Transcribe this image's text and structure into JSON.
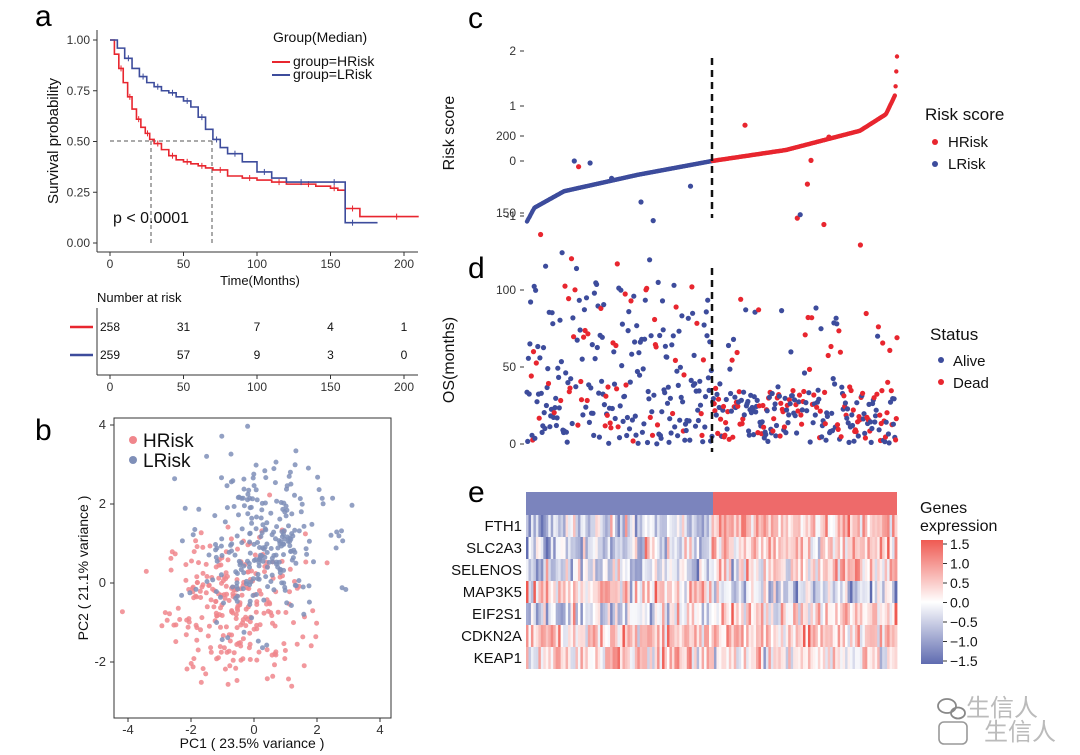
{
  "watermark": {
    "text": "生信人",
    "icon": "wechat-icon"
  },
  "colors": {
    "hrisk": "#e8262f",
    "lrisk": "#3d4c9c",
    "hrisk_pca": "#f0868c",
    "lrisk_pca": "#7f8fb8",
    "ref_line": "#555555"
  },
  "chart_data": [
    {
      "panel": "a",
      "type": "line",
      "title": "",
      "xlabel": "Time(Months)",
      "ylabel": "Survival probability",
      "xlim": [
        0,
        210
      ],
      "ylim": [
        0,
        1
      ],
      "xticks": [
        "0",
        "50",
        "100",
        "150",
        "200"
      ],
      "yticks": [
        "0.00",
        "0.25",
        "0.50",
        "0.75",
        "1.00"
      ],
      "legend_title": "Group(Median)",
      "pvalue": "p < 0.0001",
      "median_survival": [
        {
          "group": "HRisk",
          "x": 28,
          "y": 0.5
        },
        {
          "group": "LRisk",
          "x": 70,
          "y": 0.5
        }
      ],
      "series": [
        {
          "name": "group=HRisk",
          "color": "#e8262f",
          "x": [
            0,
            3,
            6,
            9,
            12,
            15,
            18,
            21,
            24,
            27,
            30,
            35,
            40,
            45,
            50,
            55,
            60,
            65,
            70,
            80,
            90,
            100,
            110,
            120,
            130,
            140,
            150,
            155,
            160,
            170,
            180,
            210
          ],
          "y": [
            1.0,
            0.93,
            0.86,
            0.79,
            0.72,
            0.66,
            0.61,
            0.57,
            0.54,
            0.51,
            0.49,
            0.46,
            0.43,
            0.41,
            0.4,
            0.39,
            0.38,
            0.37,
            0.36,
            0.33,
            0.32,
            0.31,
            0.3,
            0.29,
            0.29,
            0.28,
            0.27,
            0.26,
            0.17,
            0.13,
            0.13,
            0.13
          ]
        },
        {
          "name": "group=LRisk",
          "color": "#3d4c9c",
          "x": [
            0,
            5,
            10,
            15,
            20,
            25,
            30,
            35,
            40,
            45,
            50,
            55,
            60,
            65,
            70,
            75,
            80,
            90,
            100,
            110,
            120,
            140,
            150,
            155,
            160,
            170,
            182
          ],
          "y": [
            1.0,
            0.96,
            0.91,
            0.86,
            0.82,
            0.79,
            0.77,
            0.75,
            0.74,
            0.72,
            0.7,
            0.67,
            0.62,
            0.56,
            0.51,
            0.47,
            0.44,
            0.4,
            0.35,
            0.32,
            0.3,
            0.3,
            0.3,
            0.3,
            0.1,
            0.1,
            0.1
          ]
        }
      ],
      "risk_table": {
        "title": "Number at risk",
        "xticks": [
          "0",
          "50",
          "100",
          "150",
          "200"
        ],
        "rows": [
          {
            "group": "HRisk",
            "color": "#e8262f",
            "values": [
              "258",
              "31",
              "7",
              "4",
              "1"
            ]
          },
          {
            "group": "LRisk",
            "color": "#3d4c9c",
            "values": [
              "259",
              "57",
              "9",
              "3",
              "0"
            ]
          }
        ]
      }
    },
    {
      "panel": "b",
      "type": "scatter",
      "title": "",
      "xlabel": "PC1 ( 23.5% variance )",
      "ylabel": "PC2 ( 21.1% variance )",
      "xlim": [
        -4.5,
        4.2
      ],
      "ylim": [
        -3.2,
        4.2
      ],
      "xticks": [
        "-4",
        "-2",
        "0",
        "2",
        "4"
      ],
      "yticks": [
        "-2",
        "0",
        "2",
        "4"
      ],
      "legend": [
        "HRisk",
        "LRisk"
      ],
      "series": [
        {
          "name": "HRisk",
          "n": 258,
          "center": [
            -0.6,
            -0.6
          ],
          "spread": [
            1.1,
            0.95
          ]
        },
        {
          "name": "LRisk",
          "n": 259,
          "center": [
            0.2,
            1.0
          ],
          "spread": [
            1.0,
            1.0
          ]
        }
      ]
    },
    {
      "panel": "c",
      "type": "scatter",
      "title": "",
      "xlabel": "",
      "ylabel": "Risk score",
      "ylim": [
        -1.15,
        2.0
      ],
      "yticks": [
        "-1",
        "0",
        "1",
        "2"
      ],
      "legend_title": "Risk score",
      "legend": [
        "HRisk",
        "LRisk"
      ],
      "cutoff_index": 259,
      "n_points": 517,
      "quantiles": {
        "p": [
          0,
          0.02,
          0.1,
          0.3,
          0.5,
          0.7,
          0.9,
          0.97,
          0.995,
          1.0
        ],
        "v": [
          -1.1,
          -0.85,
          -0.55,
          -0.25,
          0,
          0.2,
          0.55,
          0.85,
          1.2,
          1.9
        ]
      }
    },
    {
      "panel": "d",
      "type": "scatter",
      "title": "",
      "xlabel": "",
      "ylabel": "OS(months)",
      "ylim": [
        0,
        215
      ],
      "yticks": [
        "0",
        "50",
        "100",
        "150",
        "200"
      ],
      "legend_title": "Status",
      "legend": [
        "Alive",
        "Dead"
      ],
      "cutoff_index": 259,
      "n_points": 517
    },
    {
      "panel": "e",
      "type": "heatmap",
      "title": "",
      "genes": [
        "FTH1",
        "SLC2A3",
        "SELENOS",
        "MAP3K5",
        "EIF2S1",
        "CDKN2A",
        "KEAP1"
      ],
      "groups": [
        "LRisk",
        "HRisk"
      ],
      "n_columns": 517,
      "colorbar_title": [
        "Genes",
        "expression"
      ],
      "colorbar_ticks": [
        "1.5",
        "1.0",
        "0.5",
        "0.0",
        "−0.5",
        "−1.0",
        "−1.5"
      ],
      "colorbar_range": [
        -1.5,
        1.5
      ],
      "gene_mean_shift_lrisk": [
        -0.4,
        -0.35,
        -0.3,
        0.35,
        -0.2,
        0.4,
        0.35
      ],
      "gene_mean_shift_hrisk": [
        0.45,
        0.4,
        0.3,
        -0.3,
        0.3,
        0.4,
        0.3
      ]
    }
  ]
}
